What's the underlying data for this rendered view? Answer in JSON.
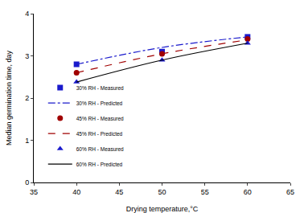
{
  "chart_data": {
    "type": "scatter",
    "x_label": "Drying temperature,°C",
    "y_label": "Median germination time, day",
    "xlim": [
      35,
      65
    ],
    "xticks": [
      35,
      40,
      45,
      50,
      55,
      60,
      65
    ],
    "ylim": [
      0,
      4
    ],
    "yticks": [
      0,
      1,
      2,
      3,
      4
    ],
    "grid": false,
    "legend": "lower left",
    "series": [
      {
        "name": "30% RH - Measured",
        "type": "scatter",
        "marker": "square",
        "color": "#1a1acc",
        "x": [
          40,
          50,
          60
        ],
        "values": [
          2.8,
          3.1,
          3.45
        ]
      },
      {
        "name": "30% RH - Predicted",
        "type": "line",
        "line_style": "dashdot",
        "color": "#1a1acc",
        "x": [
          40,
          50,
          60
        ],
        "values": [
          2.8,
          3.2,
          3.45
        ]
      },
      {
        "name": "45% RH - Measured",
        "type": "scatter",
        "marker": "circle",
        "color": "#a00000",
        "x": [
          40,
          50,
          60
        ],
        "values": [
          2.6,
          3.05,
          3.4
        ]
      },
      {
        "name": "45% RH - Predicted",
        "type": "line",
        "line_style": "dash",
        "color": "#a00000",
        "x": [
          40,
          50,
          60
        ],
        "values": [
          2.6,
          3.05,
          3.38
        ]
      },
      {
        "name": "60% RH - Measured",
        "type": "scatter",
        "marker": "triangle",
        "color": "#1a1acc",
        "x": [
          40,
          50,
          60
        ],
        "values": [
          2.38,
          2.9,
          3.3
        ]
      },
      {
        "name": "60% RH - Predicted",
        "type": "line",
        "line_style": "solid",
        "color": "#000000",
        "x": [
          40,
          50,
          60
        ],
        "values": [
          2.38,
          2.9,
          3.3
        ]
      }
    ]
  }
}
